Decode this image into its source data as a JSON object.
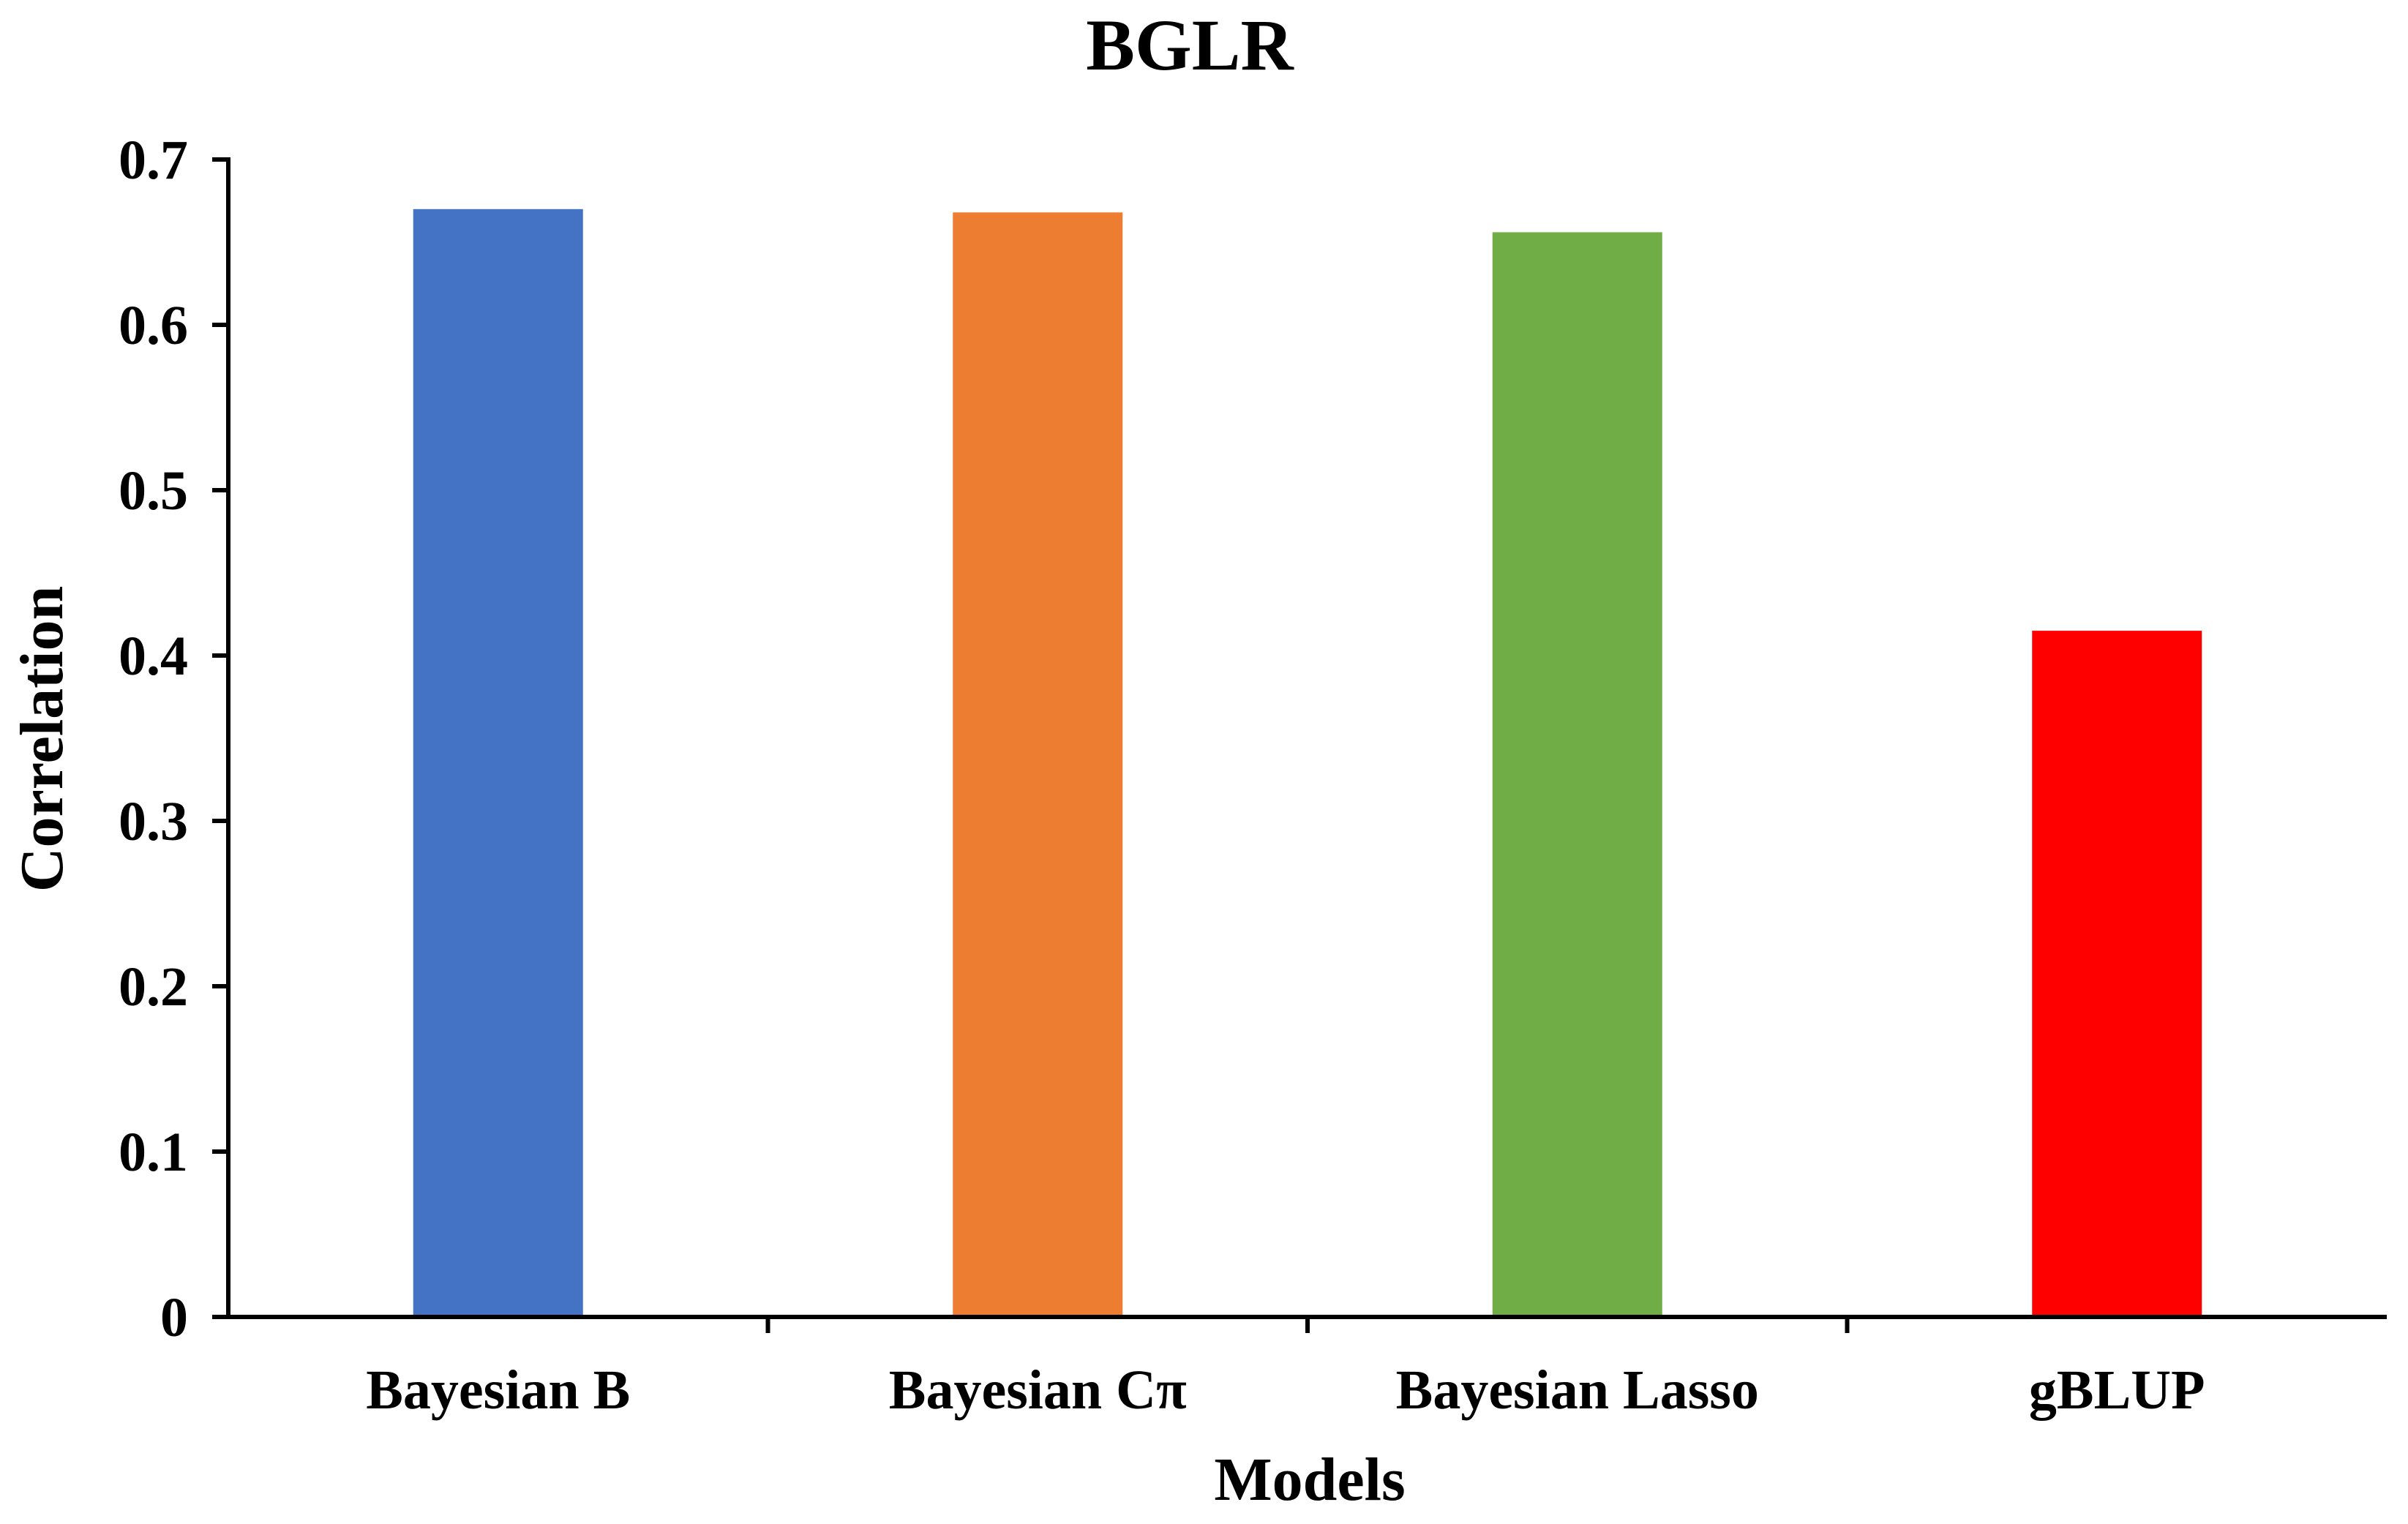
{
  "chart_data": {
    "type": "bar",
    "title": "BGLR",
    "xlabel": "Models",
    "ylabel": "Correlation",
    "categories": [
      "Bayesian B",
      "Bayesian Cπ",
      "Bayesian Lasso",
      "gBLUP"
    ],
    "values": [
      0.67,
      0.668,
      0.656,
      0.415
    ],
    "colors": [
      "#4472C4",
      "#ED7D31",
      "#70AD47",
      "#FF0000"
    ],
    "ylim": [
      0,
      0.7
    ],
    "yticks": [
      0,
      0.1,
      0.2,
      0.3,
      0.4,
      0.5,
      0.6,
      0.7
    ],
    "ytick_labels": [
      "0",
      "0.1",
      "0.2",
      "0.3",
      "0.4",
      "0.5",
      "0.6",
      "0.7"
    ],
    "grid": false,
    "legend": "none"
  }
}
